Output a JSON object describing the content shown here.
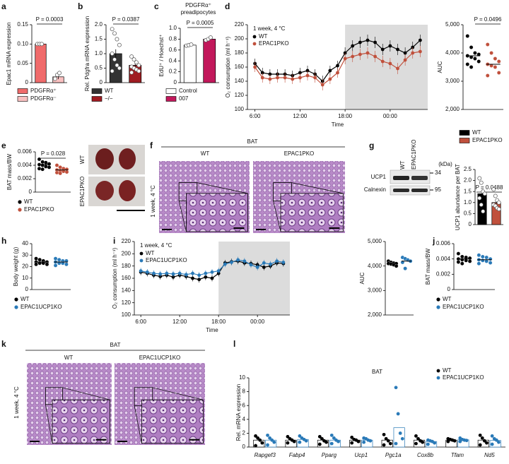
{
  "panels": [
    "a",
    "b",
    "c",
    "d",
    "e",
    "f",
    "g",
    "h",
    "i",
    "j",
    "k",
    "l"
  ],
  "images": {
    "e": {
      "rows": [
        "WT",
        "EPAC1PKO"
      ]
    },
    "f": {
      "title": "BAT",
      "columns": [
        "WT",
        "EPAC1PKO"
      ],
      "row": "1 week, 4 °C"
    },
    "g": {
      "lanes": [
        "WT",
        "EPAC1PKO"
      ],
      "unit": "(kDa)",
      "bands": [
        {
          "name": "UCP1",
          "kda": "34"
        },
        {
          "name": "Calnexin",
          "kda": "95"
        }
      ]
    },
    "k": {
      "title": "BAT",
      "columns": [
        "WT",
        "EPAC1UCP1KO"
      ],
      "row": "1 week, 4 °C"
    }
  },
  "chart_data": [
    {
      "type": "bar",
      "ylabel": "Epac1 mRNA expression",
      "categories": [
        "PDGFRα⁺",
        "PDGFRα⁻"
      ],
      "values": [
        0.1,
        0.015
      ],
      "errors": [
        0.002,
        0.006
      ],
      "colors": [
        "#f06b6b",
        "#f9c0c0"
      ],
      "points": [
        [
          0.1,
          0.1,
          0.1
        ],
        [
          0.01,
          0.02,
          0.025
        ]
      ],
      "ylim": [
        0,
        0.15
      ],
      "yticks": [
        0,
        0.05,
        {
          "value": 0.1,
          "label": "0.10"
        },
        0.15
      ],
      "annotation": "P = 0.0003",
      "legend": "bottom"
    },
    {
      "type": "bar",
      "ylabel": "Rel. Pdgfra mRNA expression",
      "categories": [
        "WT",
        "−/−"
      ],
      "values": [
        1.0,
        0.6
      ],
      "errors": [
        0.15,
        0.07
      ],
      "colors": [
        "#333333",
        "#a01c22"
      ],
      "points": [
        [
          1.85,
          1.7,
          1.5,
          1.3,
          1.0,
          0.8,
          0.6,
          0.5,
          0.4
        ],
        [
          0.9,
          0.8,
          0.7,
          0.6,
          0.55,
          0.5,
          0.45,
          0.4,
          0.35
        ]
      ],
      "ylim": [
        0,
        2.0
      ],
      "yticks": [
        0,
        0.5,
        {
          "value": 1.0,
          "label": "1.0"
        },
        1.5,
        {
          "value": 2.0,
          "label": "2.0"
        }
      ],
      "annotation": "P = 0.0387",
      "legend": "bottom"
    },
    {
      "type": "bar",
      "title_lines": [
        "PDGFRα⁺",
        "preadipocytes"
      ],
      "ylabel": "EdU⁺ / Hoechst⁺",
      "categories": [
        "Control",
        "007"
      ],
      "values": [
        0.69,
        0.8
      ],
      "errors": [
        0.01,
        0.015
      ],
      "colors": [
        "#ffffff",
        "#c2185b"
      ],
      "points": [
        [
          0.68,
          0.69,
          0.7
        ],
        [
          0.78,
          0.8,
          0.83
        ]
      ],
      "ylim": [
        0,
        1.0
      ],
      "yticks": [
        0,
        0.2,
        0.4,
        0.6,
        0.8,
        {
          "value": 1.0,
          "label": "1.0"
        }
      ],
      "annotation": "P = 0.0005",
      "legend": "bottom"
    },
    {
      "type": "line",
      "xlabel": "Time",
      "ylabel": "O₂ consumption (ml h⁻¹)",
      "annotation": "1 week, 4 °C",
      "shade_from": 18,
      "x": [
        6,
        7,
        8,
        9,
        10,
        11,
        12,
        13,
        14,
        15,
        16,
        17,
        18,
        19,
        20,
        21,
        22,
        23,
        24,
        25,
        26,
        27,
        28
      ],
      "xlim": [
        5,
        29
      ],
      "xticks": [
        {
          "value": 6,
          "label": "6:00"
        },
        {
          "value": 12,
          "label": "12:00"
        },
        {
          "value": 18,
          "label": "18:00"
        },
        {
          "value": 24,
          "label": "00:00"
        }
      ],
      "ylim": [
        100,
        220
      ],
      "yticks": [
        100,
        120,
        140,
        160,
        180,
        200,
        220
      ],
      "series": [
        {
          "name": "WT",
          "color": "#000000",
          "values": [
            165,
            152,
            150,
            150,
            150,
            148,
            152,
            155,
            150,
            140,
            155,
            162,
            180,
            190,
            195,
            198,
            195,
            185,
            190,
            185,
            180,
            188,
            198
          ],
          "errors": [
            7,
            7,
            7,
            7,
            7,
            7,
            7,
            7,
            7,
            8,
            7,
            7,
            8,
            8,
            8,
            8,
            8,
            8,
            8,
            8,
            8,
            8,
            8
          ]
        },
        {
          "name": "EPAC1PKO",
          "color": "#c0503c",
          "values": [
            160,
            145,
            143,
            145,
            145,
            143,
            145,
            148,
            145,
            135,
            143,
            152,
            172,
            175,
            178,
            180,
            175,
            168,
            165,
            158,
            170,
            180,
            182
          ],
          "errors": [
            7,
            7,
            7,
            7,
            7,
            7,
            7,
            7,
            7,
            8,
            7,
            7,
            8,
            8,
            8,
            8,
            8,
            8,
            8,
            8,
            8,
            8,
            8
          ]
        }
      ]
    },
    {
      "type": "dotplot",
      "ylabel": "AUC",
      "annotation": "P = 0.0496",
      "ylim": [
        2000,
        5000
      ],
      "yticks": [
        {
          "value": 2000,
          "label": "2,000"
        },
        {
          "value": 3000,
          "label": "3,000"
        },
        {
          "value": 4000,
          "label": "4,000"
        },
        {
          "value": 5000,
          "label": "5,000"
        }
      ],
      "series": [
        {
          "color": "#000000",
          "values": [
            4600,
            4200,
            4000,
            3950,
            3900,
            3850,
            3800,
            3700,
            3600,
            3500
          ],
          "mean": 3900
        },
        {
          "color": "#c0503c",
          "values": [
            4300,
            4000,
            3800,
            3700,
            3600,
            3550,
            3500,
            3300,
            3200
          ],
          "mean": 3600
        }
      ]
    },
    {
      "type": "dotplot",
      "ylabel": "BAT mass/BW",
      "annotation": "P = 0.028",
      "legend": "bottom",
      "ylim": [
        0,
        0.006
      ],
      "yticks": [
        0,
        0.002,
        0.004,
        0.006
      ],
      "series": [
        {
          "name": "WT",
          "color": "#000000",
          "values": [
            0.0049,
            0.0045,
            0.0044,
            0.0042,
            0.0041,
            0.004,
            0.0038,
            0.0037,
            0.0035,
            0.0034
          ],
          "mean": 0.0041
        },
        {
          "name": "EPAC1PKO",
          "color": "#c0503c",
          "values": [
            0.004,
            0.0037,
            0.0035,
            0.0034,
            0.0033,
            0.0032,
            0.0031,
            0.003,
            0.0029,
            0.0028
          ],
          "mean": 0.0033
        }
      ]
    },
    {
      "type": "bar",
      "ylabel": "UCP1 abundance per BAT",
      "categories": [
        "WT",
        "EPAC1PKO"
      ],
      "values": [
        1.4,
        1.0
      ],
      "errors": [
        0.2,
        0.1
      ],
      "colors": [
        "#000000",
        "#c0503c"
      ],
      "points": [
        [
          2.1,
          1.9,
          1.5,
          1.4,
          1.2,
          0.9,
          0.6
        ],
        [
          1.6,
          1.3,
          1.1,
          1.0,
          0.9,
          0.85,
          0.75,
          0.7
        ]
      ],
      "ylim": [
        0,
        2.5
      ],
      "yticks": [
        0,
        0.5,
        {
          "value": 1.0,
          "label": "1.0"
        },
        1.5,
        {
          "value": 2.0,
          "label": "2.0"
        },
        2.5
      ],
      "annotation": "P = 0.0488",
      "legend": "top"
    },
    {
      "type": "dotplot",
      "ylabel": "Body weight (g)",
      "legend": "bottom",
      "ylim": [
        0,
        40
      ],
      "yticks": [
        0,
        10,
        20,
        30,
        40
      ],
      "series": [
        {
          "name": "WT",
          "color": "#000000",
          "values": [
            27,
            26,
            25,
            24,
            24,
            23,
            23,
            22,
            22
          ],
          "mean": 24
        },
        {
          "name": "EPAC1UCP1KO",
          "color": "#2a7ab8",
          "values": [
            27,
            26,
            25,
            25,
            24,
            23,
            23,
            22,
            21
          ],
          "mean": 24
        }
      ]
    },
    {
      "type": "line",
      "xlabel": "Time",
      "ylabel": "O₂ consumption (ml h⁻¹)",
      "annotation": "1 week, 4 °C",
      "shade_from": 18,
      "x": [
        6,
        7,
        8,
        9,
        10,
        11,
        12,
        13,
        14,
        15,
        16,
        17,
        18,
        19,
        20,
        21,
        22,
        23,
        24,
        25,
        26,
        27,
        28
      ],
      "xlim": [
        5,
        29
      ],
      "xticks": [
        {
          "value": 6,
          "label": "6:00"
        },
        {
          "value": 12,
          "label": "12:00"
        },
        {
          "value": 18,
          "label": "18:00"
        },
        {
          "value": 24,
          "label": "00:00"
        }
      ],
      "ylim": [
        100,
        220
      ],
      "yticks": [
        100,
        120,
        140,
        160,
        180,
        200,
        220
      ],
      "series": [
        {
          "name": "WT",
          "color": "#000000",
          "values": [
            170,
            168,
            165,
            163,
            165,
            162,
            165,
            163,
            160,
            158,
            162,
            160,
            168,
            185,
            187,
            188,
            185,
            184,
            182,
            178,
            180,
            185,
            184
          ],
          "errors": [
            5,
            5,
            5,
            5,
            5,
            5,
            5,
            5,
            5,
            5,
            5,
            5,
            5,
            5,
            5,
            5,
            5,
            5,
            5,
            5,
            5,
            5,
            5
          ]
        },
        {
          "name": "EPAC1UCP1KO",
          "color": "#2a7ab8",
          "values": [
            172,
            170,
            168,
            167,
            168,
            167,
            168,
            166,
            168,
            165,
            168,
            170,
            172,
            183,
            186,
            190,
            188,
            182,
            178,
            185,
            183,
            188,
            186
          ],
          "errors": [
            5,
            5,
            5,
            5,
            5,
            5,
            5,
            5,
            5,
            5,
            5,
            5,
            5,
            5,
            5,
            5,
            5,
            5,
            5,
            5,
            5,
            5,
            5
          ]
        }
      ]
    },
    {
      "type": "dotplot",
      "ylabel": "AUC",
      "ylim": [
        2000,
        5000
      ],
      "yticks": [
        {
          "value": 2000,
          "label": "2,000"
        },
        {
          "value": 3000,
          "label": "3,000"
        },
        {
          "value": 4000,
          "label": "4,000"
        },
        {
          "value": 5000,
          "label": "5,000"
        }
      ],
      "series": [
        {
          "color": "#000000",
          "values": [
            4200,
            4150,
            4120,
            4100,
            4100,
            4080,
            4050,
            4000
          ],
          "mean": 4100
        },
        {
          "color": "#2a7ab8",
          "values": [
            4350,
            4300,
            4250,
            4200,
            4150,
            3900
          ],
          "mean": 4200
        }
      ]
    },
    {
      "type": "dotplot",
      "ylabel": "BAT mass/BW",
      "legend": "bottom",
      "ylim": [
        0,
        0.006
      ],
      "yticks": [
        0,
        0.002,
        0.004,
        0.006
      ],
      "series": [
        {
          "name": "WT",
          "color": "#000000",
          "values": [
            0.0047,
            0.0043,
            0.0042,
            0.0041,
            0.004,
            0.0039,
            0.0038,
            0.0037,
            0.0036,
            0.0034
          ],
          "mean": 0.004
        },
        {
          "name": "EPAC1UCP1KO",
          "color": "#2a7ab8",
          "values": [
            0.0045,
            0.0043,
            0.0042,
            0.004,
            0.0039,
            0.0038,
            0.0037,
            0.0035,
            0.0034
          ],
          "mean": 0.0039
        }
      ]
    },
    {
      "type": "grouped_bar",
      "title": "BAT",
      "ylabel": "Rel. mRNA expression",
      "legend": "top",
      "categories": [
        "Rapgef3",
        "Fabp4",
        "Pparg",
        "Ucp1",
        "Pgc1a",
        "Cox8b",
        "Tfam",
        "Nd5"
      ],
      "ylim": [
        0,
        10
      ],
      "yticks": [
        0,
        2,
        4,
        6,
        8,
        10
      ],
      "series": [
        {
          "name": "WT",
          "color": "#000000",
          "values": [
            1,
            1,
            1,
            1,
            1,
            1,
            1,
            1
          ],
          "points": [
            [
              1.6,
              1.3,
              1.0,
              0.6,
              0.2
            ],
            [
              1.5,
              1.2,
              1.0,
              0.8,
              0.6
            ],
            [
              1.5,
              1.2,
              0.9,
              0.7,
              0.4
            ],
            [
              1.4,
              1.1,
              1.0,
              0.8,
              0.6
            ],
            [
              1.8,
              1.2,
              0.9,
              0.5,
              0.3
            ],
            [
              1.6,
              1.2,
              0.9,
              0.7,
              0.5
            ],
            [
              1.2,
              1.1,
              1.0,
              0.9,
              0.8
            ],
            [
              1.7,
              1.3,
              0.9,
              0.6,
              0.3
            ]
          ]
        },
        {
          "name": "EPAC1UCP1KO",
          "color": "#2a7ab8",
          "values": [
            1.0,
            1.1,
            1.0,
            1.0,
            2.8,
            0.8,
            1.05,
            0.95
          ],
          "points": [
            [
              1.7,
              1.3,
              1.0,
              0.7,
              0.3
            ],
            [
              1.6,
              1.3,
              1.1,
              0.9,
              0.7
            ],
            [
              1.7,
              1.3,
              1.0,
              0.8,
              0.5
            ],
            [
              1.3,
              1.2,
              1.0,
              0.9,
              0.7
            ],
            [
              8.6,
              4.8,
              2.0,
              1.2,
              0.5
            ],
            [
              1.0,
              0.9,
              0.8,
              0.6,
              0.4
            ],
            [
              1.3,
              1.1,
              1.0,
              0.95,
              0.8
            ],
            [
              1.6,
              1.2,
              1.0,
              0.7,
              0.4
            ]
          ]
        }
      ]
    }
  ]
}
